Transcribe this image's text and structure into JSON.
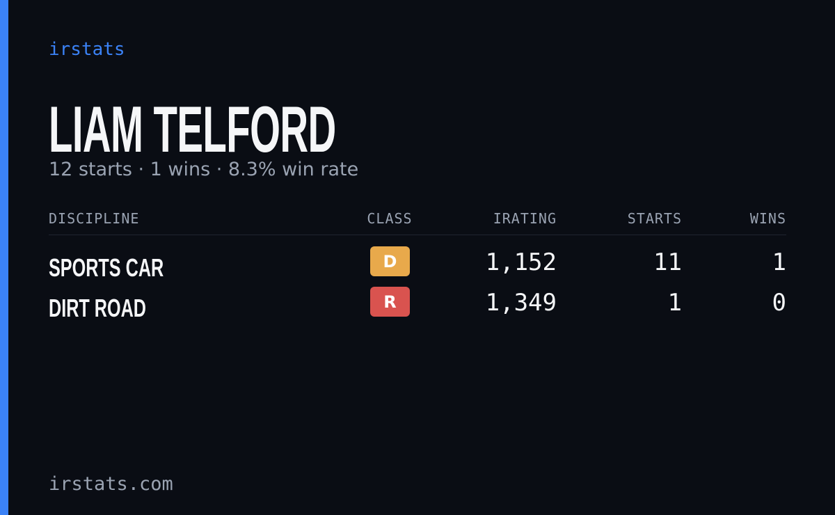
{
  "brand": "irstats",
  "driver_name": "LIAM TELFORD",
  "summary": "12 starts · 1 wins · 8.3% win rate",
  "table": {
    "headers": [
      "DISCIPLINE",
      "CLASS",
      "IRATING",
      "STARTS",
      "WINS"
    ],
    "rows": [
      {
        "discipline": "SPORTS CAR",
        "class": "D",
        "class_color": "#e8a94b",
        "irating": "1,152",
        "starts": 11,
        "wins": 1
      },
      {
        "discipline": "DIRT ROAD",
        "class": "R",
        "class_color": "#d9534f",
        "irating": "1,349",
        "starts": 1,
        "wins": 0
      }
    ]
  },
  "footer": "irstats.com"
}
